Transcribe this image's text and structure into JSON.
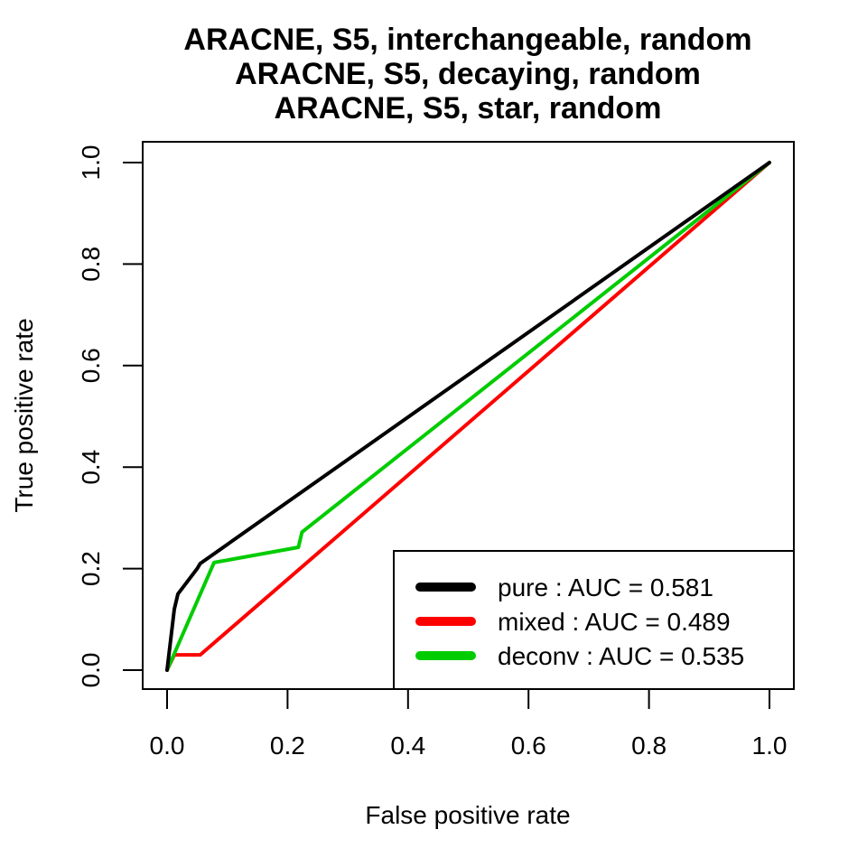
{
  "chart_data": {
    "type": "line",
    "title_lines": [
      "ARACNE, S5, interchangeable, random",
      "ARACNE, S5, decaying, random",
      "ARACNE, S5, star, random"
    ],
    "xlabel": "False positive rate",
    "ylabel": "True positive rate",
    "xlim": [
      0,
      1
    ],
    "ylim": [
      0,
      1
    ],
    "xticks": [
      "0.0",
      "0.2",
      "0.4",
      "0.6",
      "0.8",
      "1.0"
    ],
    "yticks": [
      "0.0",
      "0.2",
      "0.4",
      "0.6",
      "0.8",
      "1.0"
    ],
    "grid": false,
    "legend_position": "bottom-right",
    "series": [
      {
        "name": "pure : AUC = 0.581",
        "color": "#000000",
        "points": [
          [
            0,
            0
          ],
          [
            0.012,
            0.12
          ],
          [
            0.018,
            0.15
          ],
          [
            0.05,
            0.2
          ],
          [
            0.055,
            0.21
          ],
          [
            1,
            1
          ]
        ]
      },
      {
        "name": "mixed : AUC = 0.489",
        "color": "#ff0000",
        "points": [
          [
            0,
            0
          ],
          [
            0.012,
            0.03
          ],
          [
            0.055,
            0.03
          ],
          [
            1,
            1
          ]
        ]
      },
      {
        "name": "deconv : AUC = 0.535",
        "color": "#00cc00",
        "points": [
          [
            0,
            0
          ],
          [
            0.078,
            0.212
          ],
          [
            0.218,
            0.242
          ],
          [
            0.222,
            0.262
          ],
          [
            0.224,
            0.272
          ],
          [
            1,
            1
          ]
        ]
      }
    ]
  }
}
